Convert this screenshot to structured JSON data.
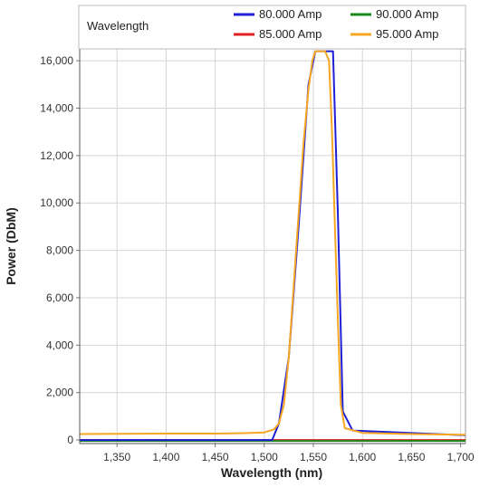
{
  "chart_data": {
    "type": "line",
    "title": "Wavelength",
    "xlabel": "Wavelength (nm)",
    "ylabel": "Power (DbM)",
    "xlim": [
      1312,
      1705
    ],
    "ylim": [
      -150,
      16500
    ],
    "xticks": [
      1350,
      1400,
      1450,
      1500,
      1550,
      1600,
      1650,
      1700
    ],
    "xtick_labels": [
      "1,350",
      "1,400",
      "1,450",
      "1,500",
      "1,550",
      "1,600",
      "1,650",
      "1,700"
    ],
    "yticks": [
      0,
      2000,
      4000,
      6000,
      8000,
      10000,
      12000,
      14000,
      16000
    ],
    "ytick_labels": [
      "0",
      "2,000",
      "4,000",
      "6,000",
      "8,000",
      "10,000",
      "12,000",
      "14,000",
      "16,000"
    ],
    "grid": true,
    "legend_position": "top",
    "series": [
      {
        "name": "80.000 Amp",
        "color": "#1f1fd6",
        "x": [
          1312,
          1508,
          1515,
          1525,
          1535,
          1545,
          1552,
          1570,
          1575,
          1580,
          1590,
          1705
        ],
        "y": [
          0,
          0,
          700,
          3500,
          9000,
          15000,
          16400,
          16400,
          9500,
          1200,
          400,
          200
        ]
      },
      {
        "name": "85.000 Amp",
        "color": "#e02020",
        "x": [
          1312,
          1705
        ],
        "y": [
          0,
          0
        ]
      },
      {
        "name": "90.000 Amp",
        "color": "#1a8a1a",
        "x": [
          1312,
          1705
        ],
        "y": [
          -40,
          -40
        ]
      },
      {
        "name": "95.000 Amp",
        "color": "#f5a623",
        "x": [
          1312,
          1350,
          1400,
          1450,
          1480,
          1500,
          1510,
          1515,
          1520,
          1525,
          1530,
          1535,
          1540,
          1545,
          1549,
          1552,
          1562,
          1566,
          1569,
          1572,
          1575,
          1578,
          1582,
          1600,
          1650,
          1705
        ],
        "y": [
          250,
          260,
          270,
          270,
          290,
          320,
          450,
          700,
          1500,
          3500,
          6500,
          9500,
          12500,
          14800,
          16000,
          16400,
          16400,
          16000,
          13000,
          9000,
          5000,
          1500,
          500,
          300,
          250,
          220
        ]
      }
    ]
  }
}
